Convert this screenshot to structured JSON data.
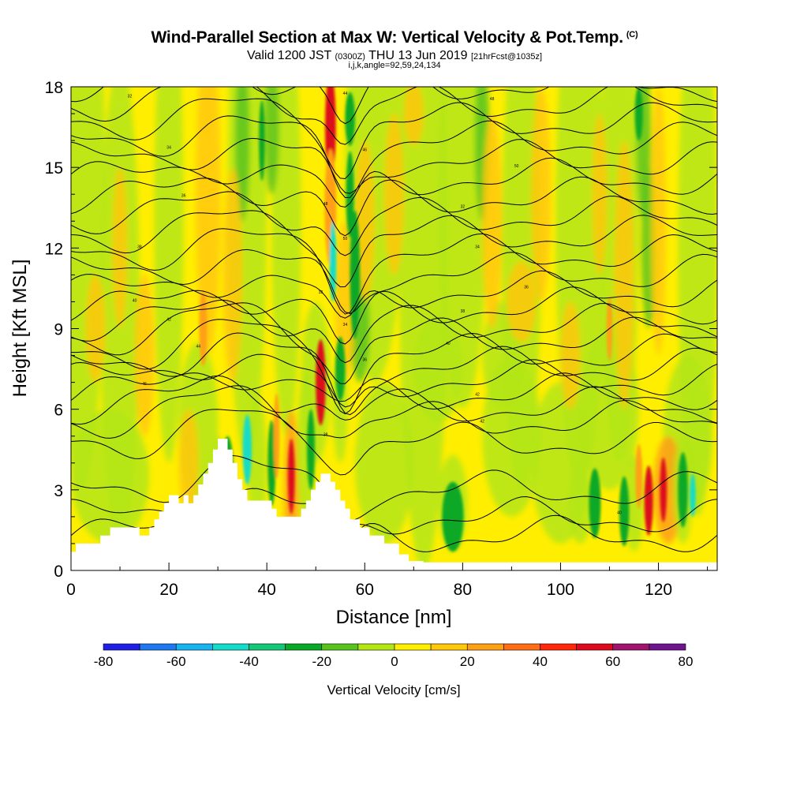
{
  "title": {
    "main": "Wind-Parallel Section at Max W: Vertical Velocity & Pot.Temp.",
    "copyright": "(C)",
    "valid_prefix": "Valid 1200 JST",
    "zulu": "(0300Z)",
    "valid_date": "THU 13 Jun 2019",
    "forecast": "[21hrFcst@1035z]",
    "params": "i,j,k,angle=92,59,24,134"
  },
  "chart_data": {
    "type": "heatmap",
    "title": "Wind-Parallel Section at Max W: Vertical Velocity & Pot.Temp.",
    "xlabel": "Distance [nm]",
    "ylabel": "Height [Kft MSL]",
    "xlim": [
      0,
      132
    ],
    "ylim": [
      0,
      18
    ],
    "xticks": [
      "0",
      "20",
      "40",
      "60",
      "80",
      "100",
      "120"
    ],
    "xtick_values": [
      0,
      20,
      40,
      60,
      80,
      100,
      120
    ],
    "yticks": [
      "0",
      "3",
      "6",
      "9",
      "12",
      "15",
      "18"
    ],
    "ytick_values": [
      0,
      3,
      6,
      9,
      12,
      15,
      18
    ],
    "colorbar": {
      "title": "Vertical Velocity [cm/s]",
      "labels": [
        "-80",
        "-60",
        "-40",
        "-20",
        "0",
        "20",
        "40",
        "60",
        "80"
      ],
      "label_values": [
        -80,
        -60,
        -40,
        -20,
        0,
        20,
        40,
        60,
        80
      ],
      "colors": [
        "#1f1fe6",
        "#1e78f0",
        "#18b4f0",
        "#14dcc8",
        "#14c878",
        "#0aa828",
        "#5ac41e",
        "#b4e614",
        "#ffee00",
        "#ffc80a",
        "#ffa014",
        "#ff6e14",
        "#ff280a",
        "#dc0a1e",
        "#a0146e",
        "#6e148c"
      ]
    },
    "terrain": [
      [
        0,
        0.7
      ],
      [
        1,
        0.7
      ],
      [
        1,
        1.0
      ],
      [
        6,
        1.0
      ],
      [
        6,
        1.3
      ],
      [
        8,
        1.3
      ],
      [
        8,
        1.6
      ],
      [
        14,
        1.6
      ],
      [
        14,
        1.3
      ],
      [
        16,
        1.3
      ],
      [
        16,
        1.6
      ],
      [
        17,
        1.6
      ],
      [
        17,
        1.9
      ],
      [
        18,
        1.9
      ],
      [
        18,
        2.2
      ],
      [
        19,
        2.2
      ],
      [
        19,
        2.5
      ],
      [
        20,
        2.5
      ],
      [
        20,
        2.8
      ],
      [
        22,
        2.8
      ],
      [
        22,
        2.5
      ],
      [
        23,
        2.5
      ],
      [
        23,
        2.8
      ],
      [
        24,
        2.8
      ],
      [
        24,
        2.5
      ],
      [
        25,
        2.5
      ],
      [
        25,
        2.8
      ],
      [
        26,
        2.8
      ],
      [
        26,
        3.2
      ],
      [
        27,
        3.2
      ],
      [
        27,
        3.6
      ],
      [
        28,
        3.6
      ],
      [
        28,
        4.0
      ],
      [
        29,
        4.0
      ],
      [
        29,
        4.5
      ],
      [
        30,
        4.5
      ],
      [
        30,
        4.9
      ],
      [
        32,
        4.9
      ],
      [
        32,
        4.5
      ],
      [
        33,
        4.5
      ],
      [
        33,
        4.0
      ],
      [
        34,
        4.0
      ],
      [
        34,
        3.4
      ],
      [
        35,
        3.4
      ],
      [
        35,
        3.0
      ],
      [
        36,
        3.0
      ],
      [
        36,
        2.6
      ],
      [
        41,
        2.6
      ],
      [
        41,
        2.3
      ],
      [
        42,
        2.3
      ],
      [
        42,
        2.0
      ],
      [
        47,
        2.0
      ],
      [
        47,
        2.3
      ],
      [
        48,
        2.3
      ],
      [
        48,
        2.6
      ],
      [
        49,
        2.6
      ],
      [
        49,
        3.0
      ],
      [
        50,
        3.0
      ],
      [
        50,
        3.3
      ],
      [
        51,
        3.3
      ],
      [
        51,
        3.6
      ],
      [
        53,
        3.6
      ],
      [
        53,
        3.3
      ],
      [
        54,
        3.3
      ],
      [
        54,
        3.0
      ],
      [
        55,
        3.0
      ],
      [
        55,
        2.6
      ],
      [
        56,
        2.6
      ],
      [
        56,
        2.3
      ],
      [
        57,
        2.3
      ],
      [
        57,
        1.9
      ],
      [
        59,
        1.9
      ],
      [
        59,
        1.6
      ],
      [
        61,
        1.6
      ],
      [
        61,
        1.3
      ],
      [
        64,
        1.3
      ],
      [
        64,
        1.0
      ],
      [
        67,
        1.0
      ],
      [
        67,
        0.6
      ],
      [
        69,
        0.6
      ],
      [
        69,
        0.35
      ],
      [
        72,
        0.35
      ],
      [
        72,
        0.3
      ],
      [
        132,
        0.3
      ]
    ],
    "theta_contours_K": [
      "32",
      "34",
      "36",
      "38",
      "40",
      "42",
      "44",
      "46",
      "48",
      "50"
    ],
    "vertical_velocity_units": "cm/s"
  },
  "colors": {
    "background": "#ffffff",
    "terrain": "#ffffff",
    "contour": "#000000"
  }
}
